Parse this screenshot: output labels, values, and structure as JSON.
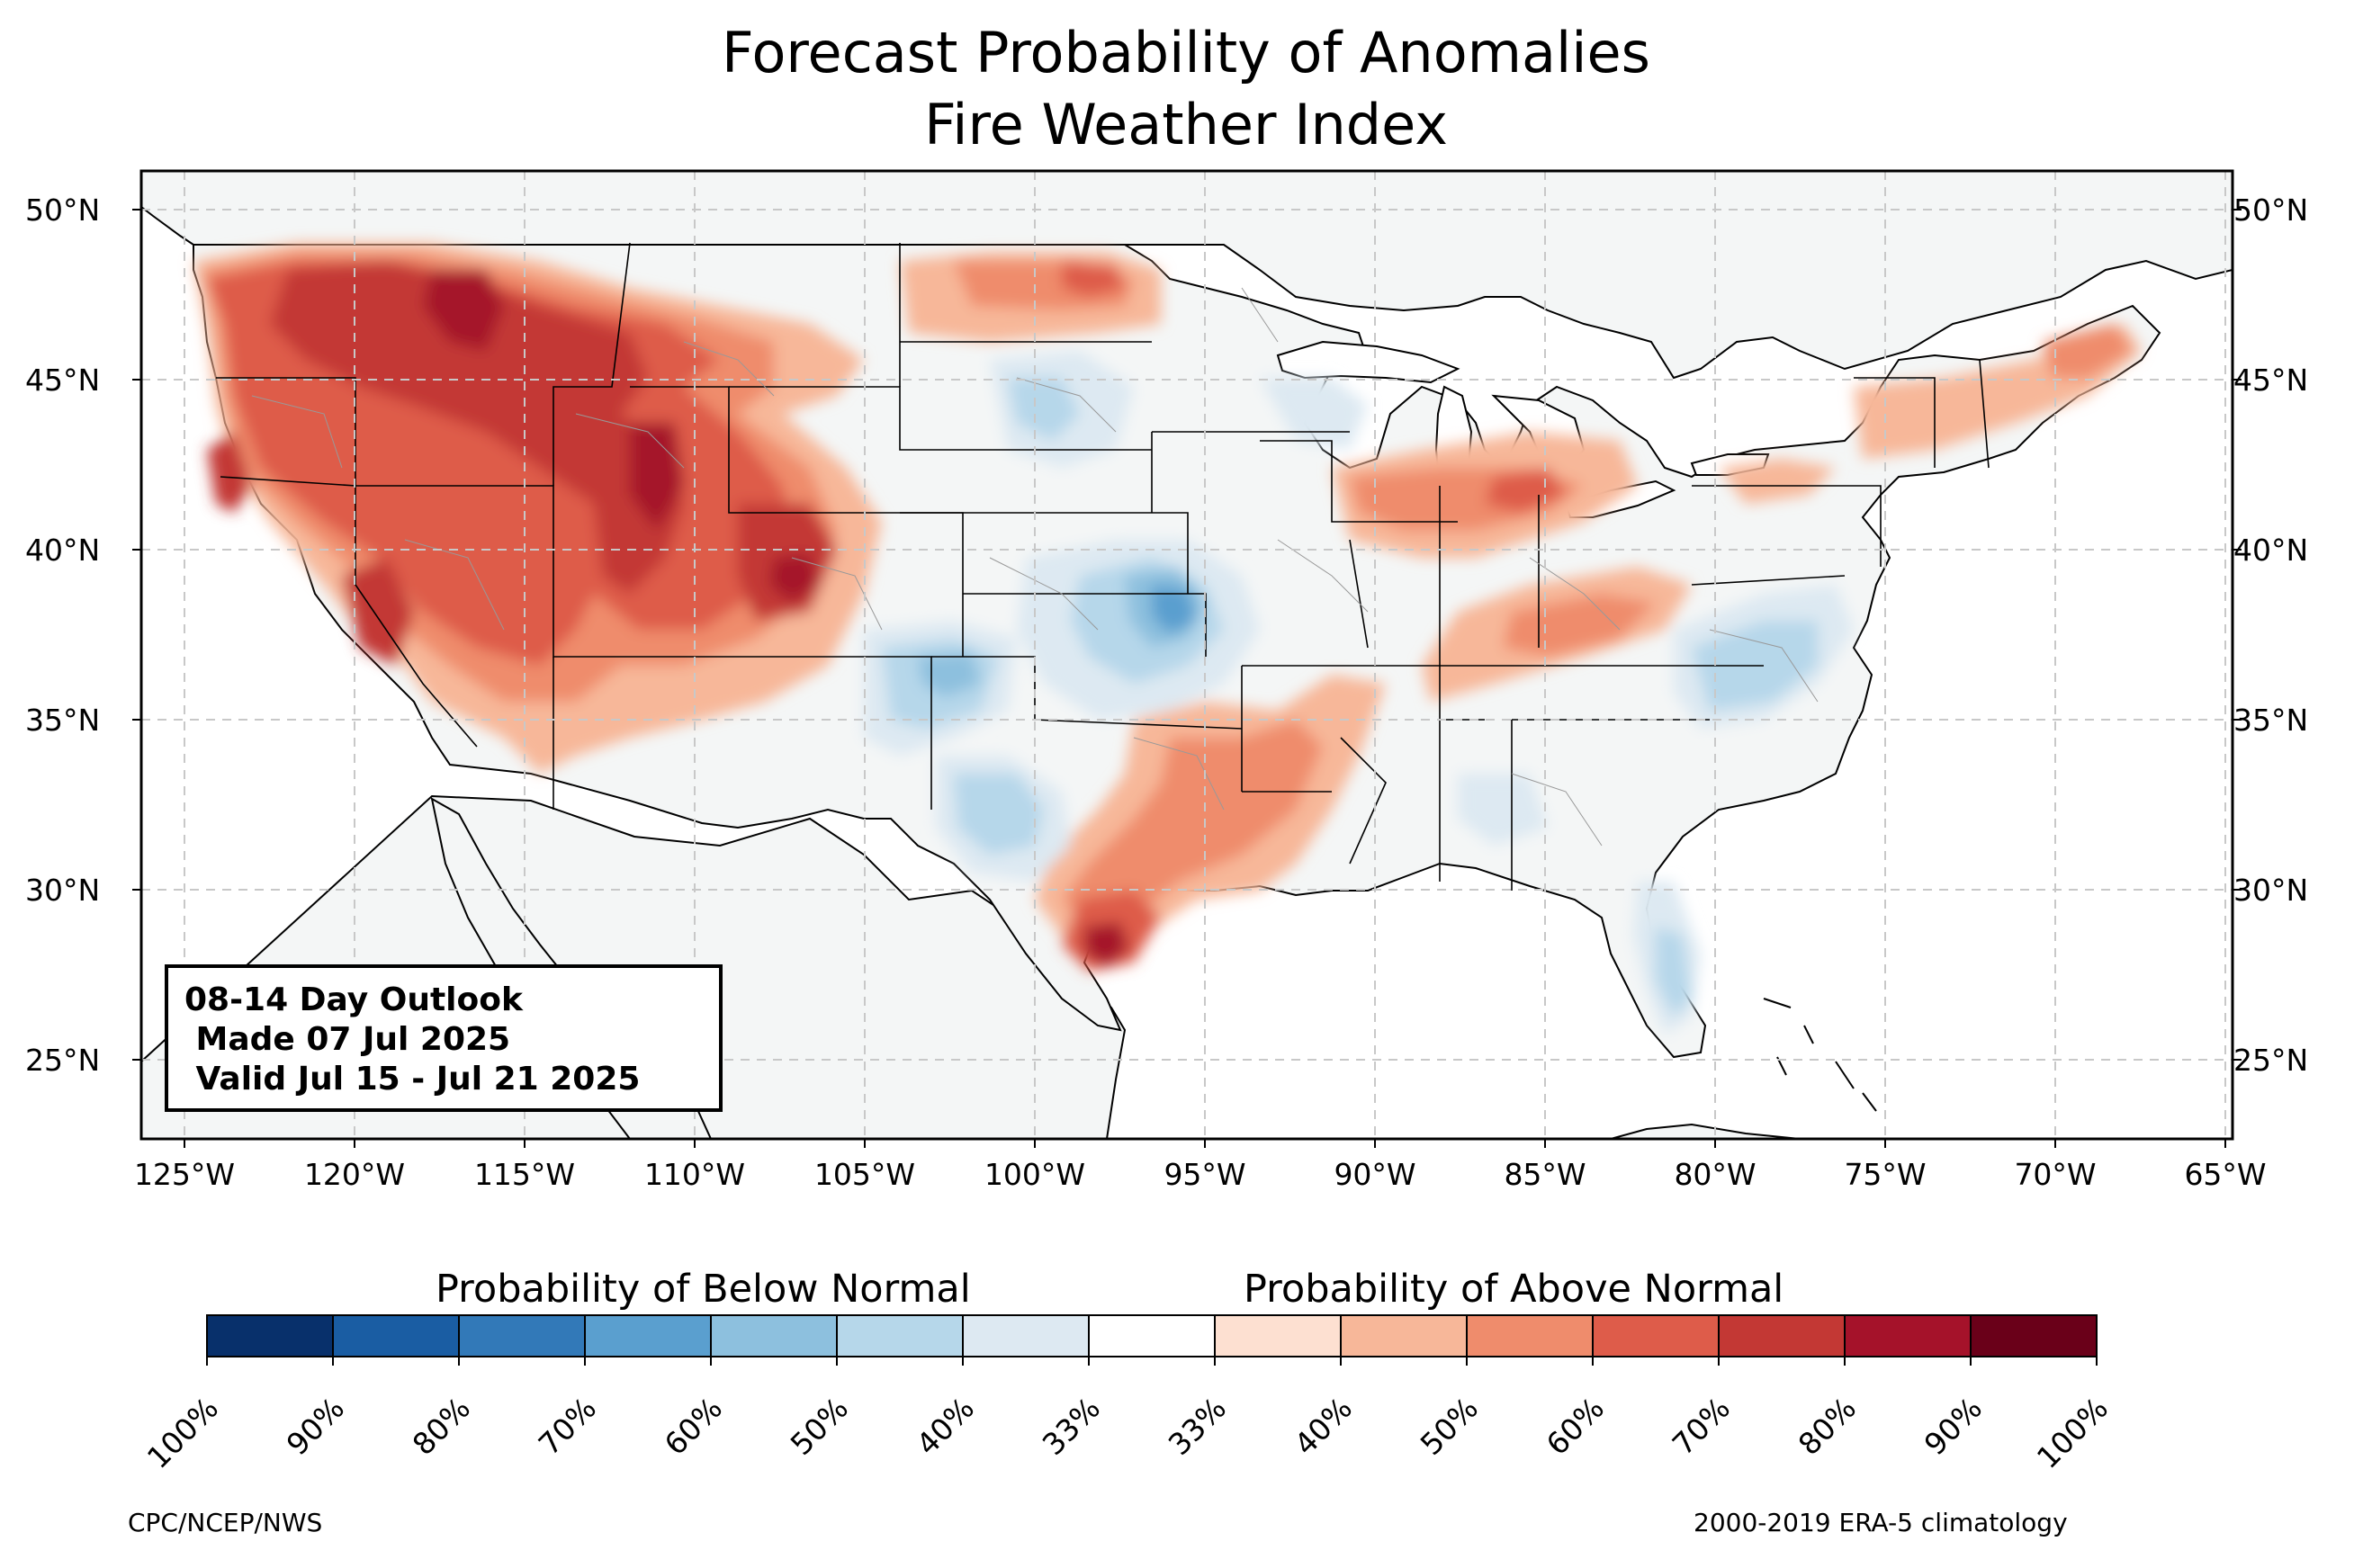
{
  "title": {
    "line1": "Forecast Probability of Anomalies",
    "line2": "Fire Weather Index"
  },
  "outlook": {
    "line1": "08-14 Day Outlook",
    "line2": " Made 07 Jul 2025",
    "line3": " Valid Jul 15 - Jul 21 2025"
  },
  "map": {
    "lat_ticks": [
      "50°N",
      "45°N",
      "40°N",
      "35°N",
      "30°N",
      "25°N"
    ],
    "lon_ticks": [
      "125°W",
      "120°W",
      "115°W",
      "110°W",
      "105°W",
      "100°W",
      "95°W",
      "90°W",
      "85°W",
      "80°W",
      "75°W",
      "70°W",
      "65°W"
    ],
    "lat_range": [
      22.7,
      51.2
    ],
    "lon_range": [
      -126.3,
      -64.9
    ],
    "colors": {
      "land": "#f4f6f6",
      "border": "#000000",
      "county": "#888888",
      "grid": "#cccccc"
    }
  },
  "colorbar": {
    "below_label": "Probability of Below Normal",
    "above_label": "Probability of Above Normal",
    "ticks": [
      "100%",
      "90%",
      "80%",
      "70%",
      "60%",
      "50%",
      "40%",
      "33%",
      "33%",
      "40%",
      "50%",
      "60%",
      "70%",
      "80%",
      "90%",
      "100%"
    ],
    "colors": [
      "#08306b",
      "#1a5da3",
      "#3279b8",
      "#5a9fcf",
      "#8dc0de",
      "#b6d7ea",
      "#dde9f2",
      "#ffffff",
      "#fde0d1",
      "#f7b799",
      "#ef8c6c",
      "#de5c4a",
      "#c33834",
      "#a5122a",
      "#6a0019"
    ]
  },
  "footer": {
    "left": "CPC/NCEP/NWS",
    "right": "2000-2019 ERA-5 climatology"
  }
}
